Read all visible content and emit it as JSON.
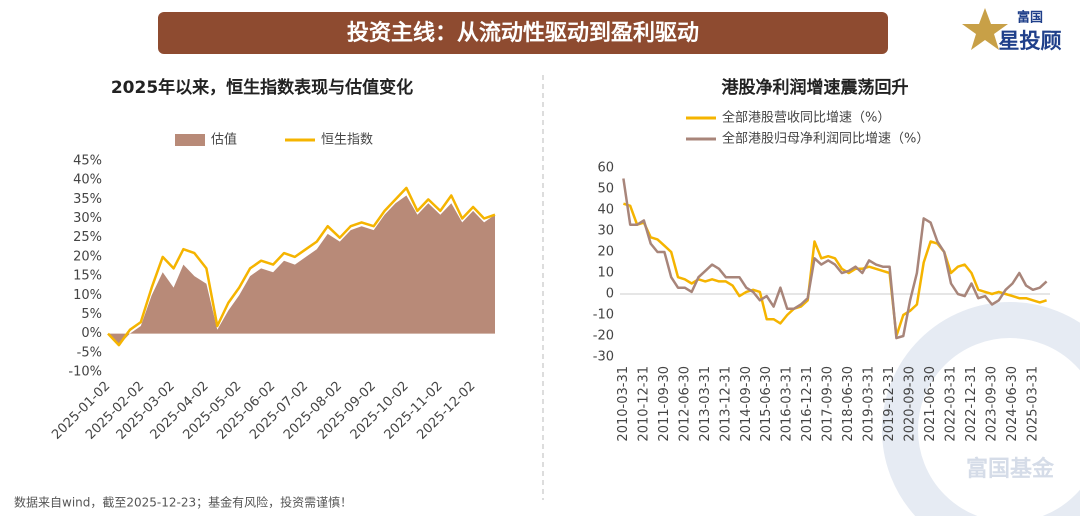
{
  "header": {
    "title": "投资主线：从流动性驱动到盈利驱动",
    "logo_top": "富国",
    "logo_main": "星投顾"
  },
  "chart_data": [
    {
      "type": "combo",
      "title": "2025年以来，恒生指数表现与估值变化",
      "x": [
        "2025-01-02",
        "2025-01-12",
        "2025-01-22",
        "2025-02-01",
        "2025-02-11",
        "2025-02-21",
        "2025-03-03",
        "2025-03-12",
        "2025-03-22",
        "2025-04-02",
        "2025-04-12",
        "2025-04-22",
        "2025-05-02",
        "2025-05-12",
        "2025-05-22",
        "2025-06-02",
        "2025-06-12",
        "2025-06-22",
        "2025-07-02",
        "2025-07-12",
        "2025-07-22",
        "2025-08-02",
        "2025-08-12",
        "2025-08-22",
        "2025-09-02",
        "2025-09-12",
        "2025-09-22",
        "2025-10-02",
        "2025-10-12",
        "2025-10-22",
        "2025-11-02",
        "2025-11-12",
        "2025-11-22",
        "2025-12-02",
        "2025-12-12",
        "2025-12-22"
      ],
      "series": [
        {
          "name": "估值",
          "type": "area",
          "color": "#b88a78",
          "values": [
            0,
            -3,
            0,
            2,
            10,
            16,
            12,
            18,
            15,
            13,
            1,
            6,
            10,
            15,
            17,
            16,
            19,
            18,
            20,
            22,
            26,
            24,
            27,
            28,
            27,
            31,
            34,
            36,
            31,
            34,
            31,
            34,
            29,
            32,
            29,
            31
          ]
        },
        {
          "name": "恒生指数",
          "type": "line",
          "color": "#f5b400",
          "values": [
            0,
            -3,
            1,
            3,
            12,
            20,
            17,
            22,
            21,
            17,
            2,
            8,
            12,
            17,
            19,
            18,
            21,
            20,
            22,
            24,
            28,
            25,
            28,
            29,
            28,
            32,
            35,
            38,
            32,
            35,
            32,
            36,
            30,
            33,
            30,
            31
          ]
        }
      ],
      "xticks": [
        "2025-01-02",
        "2025-02-02",
        "2025-03-02",
        "2025-04-02",
        "2025-05-02",
        "2025-06-02",
        "2025-07-02",
        "2025-08-02",
        "2025-09-02",
        "2025-10-02",
        "2025-11-02",
        "2025-12-02"
      ],
      "ylim": [
        -10,
        45
      ],
      "yticks": [
        {
          "value": -10,
          "label": "-10%"
        },
        {
          "value": -5,
          "label": "-5%"
        },
        {
          "value": 0,
          "label": "0%"
        },
        {
          "value": 5,
          "label": "5%"
        },
        {
          "value": 10,
          "label": "10%"
        },
        {
          "value": 15,
          "label": "15%"
        },
        {
          "value": 20,
          "label": "20%"
        },
        {
          "value": 25,
          "label": "25%"
        },
        {
          "value": 30,
          "label": "30%"
        },
        {
          "value": 35,
          "label": "35%"
        },
        {
          "value": 40,
          "label": "40%"
        },
        {
          "value": 45,
          "label": "45%"
        }
      ],
      "grid": false,
      "legend": "top"
    },
    {
      "type": "line",
      "title": "港股净利润增速震荡回升",
      "categories": [
        "2010-03-31",
        null,
        null,
        "2010-12-31",
        null,
        null,
        "2011-09-30",
        null,
        null,
        "2012-06-30",
        null,
        null,
        "2013-03-31",
        null,
        null,
        "2013-12-31",
        null,
        null,
        "2014-09-30",
        null,
        null,
        "2015-06-30",
        null,
        null,
        "2016-03-31",
        null,
        null,
        "2016-12-31",
        null,
        null,
        "2017-09-30",
        null,
        null,
        "2018-06-30",
        null,
        null,
        "2019-03-31",
        null,
        null,
        "2019-12-31",
        null,
        null,
        "2020-09-30",
        null,
        null,
        "2021-06-30",
        null,
        null,
        "2022-03-31",
        null,
        null,
        "2022-12-31",
        null,
        null,
        "2023-09-30",
        null,
        null,
        "2024-06-30",
        null,
        null,
        "2025-03-31",
        null,
        null
      ],
      "series": [
        {
          "name": "全部港股营收同比增速（%）",
          "color": "#f5b400",
          "values": [
            43,
            42,
            33,
            34,
            27,
            26,
            23,
            20,
            8,
            7,
            5,
            7,
            6,
            7,
            6,
            6,
            4,
            -1,
            1,
            2,
            1,
            -12,
            -12,
            -14,
            -10,
            -7,
            -6,
            -3,
            25,
            17,
            18,
            17,
            12,
            10,
            12,
            12,
            13,
            12,
            11,
            10,
            -20,
            -10,
            -8,
            -5,
            15,
            25,
            24,
            20,
            10,
            13,
            14,
            10,
            2,
            1,
            0,
            1,
            0,
            -1,
            -2,
            -2,
            -3,
            -4,
            -3
          ]
        },
        {
          "name": "全部港股归母净利润同比增速（%）",
          "color": "#a8857a",
          "values": [
            55,
            33,
            33,
            35,
            24,
            20,
            20,
            8,
            3,
            3,
            1,
            8,
            11,
            14,
            12,
            8,
            8,
            8,
            3,
            1,
            -3,
            -1,
            -6,
            3,
            -7,
            -7,
            -5,
            -2,
            17,
            14,
            16,
            14,
            10,
            11,
            13,
            10,
            16,
            14,
            13,
            13,
            -21,
            -20,
            -3,
            10,
            36,
            34,
            25,
            20,
            5,
            0,
            -1,
            5,
            -2,
            -1,
            -5,
            -3,
            2,
            5,
            10,
            4,
            2,
            3,
            6
          ]
        }
      ],
      "ylim": [
        -30,
        60
      ],
      "yticks": [
        -30,
        -20,
        -10,
        0,
        10,
        20,
        30,
        40,
        50,
        60
      ],
      "grid": false,
      "legend": "top-left"
    }
  ],
  "footer": "数据来自wind，截至2025-12-23；基金有风险，投资需谨慎！",
  "watermark": "富国基金"
}
